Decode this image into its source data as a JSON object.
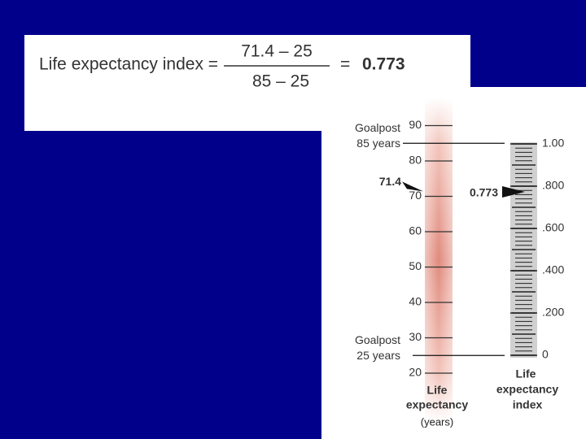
{
  "formula": {
    "label": "Life expectancy index =",
    "numerator": "71.4 – 25",
    "denominator": "85 – 25",
    "equals": "=",
    "result": "0.773"
  },
  "diagram": {
    "years_ticks": [
      20,
      30,
      40,
      50,
      60,
      70,
      80,
      90
    ],
    "index_ticks": [
      {
        "value": 0,
        "label": "0"
      },
      {
        "value": 0.2,
        "label": ".200"
      },
      {
        "value": 0.4,
        "label": ".400"
      },
      {
        "value": 0.6,
        "label": ".600"
      },
      {
        "value": 0.8,
        "label": ".800"
      },
      {
        "value": 1,
        "label": "1.00"
      }
    ],
    "goalpost_high": {
      "title": "Goalpost",
      "text": "85 years",
      "value": 85
    },
    "goalpost_low": {
      "title": "Goalpost",
      "text": "25 years",
      "value": 25
    },
    "marker_years": {
      "label": "71.4",
      "value": 71.4
    },
    "marker_index": {
      "label": "0.773",
      "value": 0.773
    },
    "years_axis": {
      "line1": "Life",
      "line2": "expectancy",
      "unit": "(years)"
    },
    "index_axis": {
      "line1": "Life",
      "line2": "expectancy",
      "line3": "index"
    }
  }
}
